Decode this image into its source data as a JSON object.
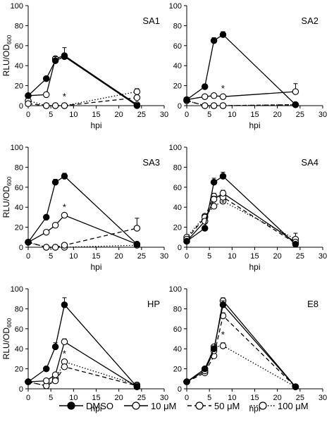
{
  "figure": {
    "legend": [
      {
        "label": "DMSO",
        "style": "solid",
        "marker": "filled"
      },
      {
        "label": "10 μM",
        "style": "solid",
        "marker": "open"
      },
      {
        "label": "50 μM",
        "style": "dashed",
        "marker": "open"
      },
      {
        "label": "100 μM",
        "style": "dotted",
        "marker": "open"
      }
    ]
  },
  "chart_data": [
    {
      "type": "line",
      "panel": "SA1",
      "title": "SA1",
      "xlabel": "hpi",
      "ylabel": "RLU/OD",
      "ylabel_sub": "600",
      "xlim": [
        0,
        30
      ],
      "ylim": [
        0,
        100
      ],
      "xticks": [
        0,
        5,
        10,
        15,
        20,
        25,
        30
      ],
      "yticks": [
        0,
        20,
        40,
        60,
        80,
        100
      ],
      "show_xlabel": true,
      "show_ylabel": true,
      "x": [
        0,
        4,
        6,
        8,
        24
      ],
      "series": [
        {
          "name": "DMSO",
          "values": [
            10,
            27,
            45,
            49,
            0
          ],
          "errors": [
            0,
            0,
            4,
            3,
            0
          ]
        },
        {
          "name": "10 μM",
          "values": [
            10,
            11,
            47,
            50,
            1
          ],
          "errors": [
            0,
            0,
            0,
            8,
            0
          ]
        },
        {
          "name": "50 μM",
          "values": [
            2,
            0,
            0,
            0,
            8
          ],
          "errors": [
            0,
            0,
            0,
            0,
            0
          ]
        },
        {
          "name": "100 μM",
          "values": [
            5,
            0,
            0,
            0,
            14
          ],
          "errors": [
            0,
            0,
            0,
            0,
            3
          ]
        }
      ],
      "annotations": [
        {
          "text": "*",
          "x": 8,
          "y": 6
        }
      ]
    },
    {
      "type": "line",
      "panel": "SA2",
      "title": "SA2",
      "xlabel": "hpi",
      "ylabel": "RLU/OD",
      "ylabel_sub": "600",
      "xlim": [
        0,
        30
      ],
      "ylim": [
        0,
        100
      ],
      "xticks": [
        0,
        5,
        10,
        15,
        20,
        25,
        30
      ],
      "yticks": [
        0,
        20,
        40,
        60,
        80,
        100
      ],
      "show_xlabel": true,
      "show_ylabel": false,
      "x": [
        0,
        4,
        6,
        8,
        24
      ],
      "series": [
        {
          "name": "DMSO",
          "values": [
            6,
            19,
            65,
            71,
            1
          ],
          "errors": [
            0,
            0,
            3,
            3,
            0
          ]
        },
        {
          "name": "10 μM",
          "values": [
            6,
            9,
            10,
            9,
            14
          ],
          "errors": [
            0,
            0,
            0,
            0,
            8
          ]
        },
        {
          "name": "50 μM",
          "values": [
            5,
            0,
            0,
            0,
            1
          ],
          "errors": [
            0,
            0,
            0,
            0,
            0
          ]
        },
        {
          "name": "100 μM",
          "values": [
            5,
            0,
            0,
            0,
            1
          ],
          "errors": [
            0,
            0,
            0,
            0,
            0
          ]
        }
      ],
      "annotations": [
        {
          "text": "*",
          "x": 8,
          "y": 14
        }
      ]
    },
    {
      "type": "line",
      "panel": "SA3",
      "title": "SA3",
      "xlabel": "hpi",
      "ylabel": "RLU/OD",
      "ylabel_sub": "600",
      "xlim": [
        0,
        30
      ],
      "ylim": [
        0,
        100
      ],
      "xticks": [
        0,
        5,
        10,
        15,
        20,
        25,
        30
      ],
      "yticks": [
        0,
        20,
        40,
        60,
        80,
        100
      ],
      "show_xlabel": true,
      "show_ylabel": true,
      "x": [
        0,
        4,
        6,
        8,
        24
      ],
      "series": [
        {
          "name": "DMSO",
          "values": [
            5,
            30,
            65,
            71,
            3
          ],
          "errors": [
            0,
            0,
            3,
            3,
            0
          ]
        },
        {
          "name": "10 μM",
          "values": [
            5,
            15,
            22,
            32,
            3
          ],
          "errors": [
            0,
            0,
            0,
            2,
            0
          ]
        },
        {
          "name": "50 μM",
          "values": [
            5,
            0,
            0,
            2,
            19
          ],
          "errors": [
            0,
            0,
            0,
            0,
            10
          ]
        },
        {
          "name": "100 μM",
          "values": [
            5,
            0,
            0,
            0,
            2
          ],
          "errors": [
            0,
            0,
            0,
            0,
            0
          ]
        }
      ],
      "annotations": [
        {
          "text": "*",
          "x": 8,
          "y": 37
        }
      ]
    },
    {
      "type": "line",
      "panel": "SA4",
      "title": "SA4",
      "xlabel": "hpi",
      "ylabel": "RLU/OD",
      "ylabel_sub": "600",
      "xlim": [
        0,
        30
      ],
      "ylim": [
        0,
        100
      ],
      "xticks": [
        0,
        5,
        10,
        15,
        20,
        25,
        30
      ],
      "yticks": [
        0,
        20,
        40,
        60,
        80,
        100
      ],
      "show_xlabel": true,
      "show_ylabel": false,
      "x": [
        0,
        4,
        6,
        8,
        24
      ],
      "series": [
        {
          "name": "DMSO",
          "values": [
            6,
            19,
            65,
            71,
            3
          ],
          "errors": [
            0,
            0,
            4,
            4,
            0
          ]
        },
        {
          "name": "10 μM",
          "values": [
            6,
            26,
            48,
            54,
            5
          ],
          "errors": [
            0,
            0,
            3,
            3,
            0
          ]
        },
        {
          "name": "50 μM",
          "values": [
            8,
            30,
            51,
            50,
            4
          ],
          "errors": [
            0,
            0,
            3,
            3,
            0
          ]
        },
        {
          "name": "100 μM",
          "values": [
            10,
            31,
            41,
            46,
            8
          ],
          "errors": [
            0,
            0,
            0,
            0,
            6
          ]
        }
      ],
      "annotations": [
        {
          "text": "*",
          "x": 8,
          "y": 41
        }
      ]
    },
    {
      "type": "line",
      "panel": "HP",
      "title": "HP",
      "xlabel": "hpi",
      "ylabel": "RLU/OD",
      "ylabel_sub": "600",
      "xlim": [
        0,
        30
      ],
      "ylim": [
        0,
        100
      ],
      "xticks": [
        0,
        5,
        10,
        15,
        20,
        25,
        30
      ],
      "yticks": [
        0,
        20,
        40,
        60,
        80,
        100
      ],
      "show_xlabel": true,
      "show_ylabel": true,
      "x": [
        0,
        4,
        6,
        8,
        24
      ],
      "series": [
        {
          "name": "DMSO",
          "values": [
            7,
            20,
            42,
            84,
            2
          ],
          "errors": [
            0,
            0,
            4,
            7,
            0
          ]
        },
        {
          "name": "10 μM",
          "values": [
            7,
            8,
            14,
            47,
            2
          ],
          "errors": [
            0,
            0,
            0,
            3,
            0
          ]
        },
        {
          "name": "50 μM",
          "values": [
            7,
            3,
            8,
            22,
            3
          ],
          "errors": [
            0,
            0,
            0,
            0,
            0
          ]
        },
        {
          "name": "100 μM",
          "values": [
            7,
            3,
            10,
            27,
            4
          ],
          "errors": [
            0,
            0,
            0,
            0,
            0
          ]
        }
      ],
      "annotations": [
        {
          "text": "*",
          "x": 8,
          "y": 32
        }
      ]
    },
    {
      "type": "line",
      "panel": "E8",
      "title": "E8",
      "xlabel": "hpi",
      "ylabel": "RLU/OD",
      "ylabel_sub": "600",
      "xlim": [
        0,
        30
      ],
      "ylim": [
        0,
        100
      ],
      "xticks": [
        0,
        5,
        10,
        15,
        20,
        25,
        30
      ],
      "yticks": [
        0,
        20,
        40,
        60,
        80,
        100
      ],
      "show_xlabel": true,
      "show_ylabel": false,
      "x": [
        0,
        4,
        6,
        8,
        24
      ],
      "series": [
        {
          "name": "DMSO",
          "values": [
            7,
            20,
            40,
            84,
            2
          ],
          "errors": [
            0,
            0,
            3,
            4,
            0
          ]
        },
        {
          "name": "10 μM",
          "values": [
            7,
            18,
            38,
            88,
            2
          ],
          "errors": [
            0,
            0,
            3,
            3,
            0
          ]
        },
        {
          "name": "50 μM",
          "values": [
            7,
            16,
            33,
            73,
            2
          ],
          "errors": [
            0,
            0,
            0,
            3,
            0
          ]
        },
        {
          "name": "100 μM",
          "values": [
            7,
            18,
            42,
            43,
            2
          ],
          "errors": [
            0,
            0,
            0,
            3,
            0
          ]
        }
      ],
      "annotations": [
        {
          "text": "*",
          "x": 8,
          "y": 51
        }
      ]
    }
  ]
}
